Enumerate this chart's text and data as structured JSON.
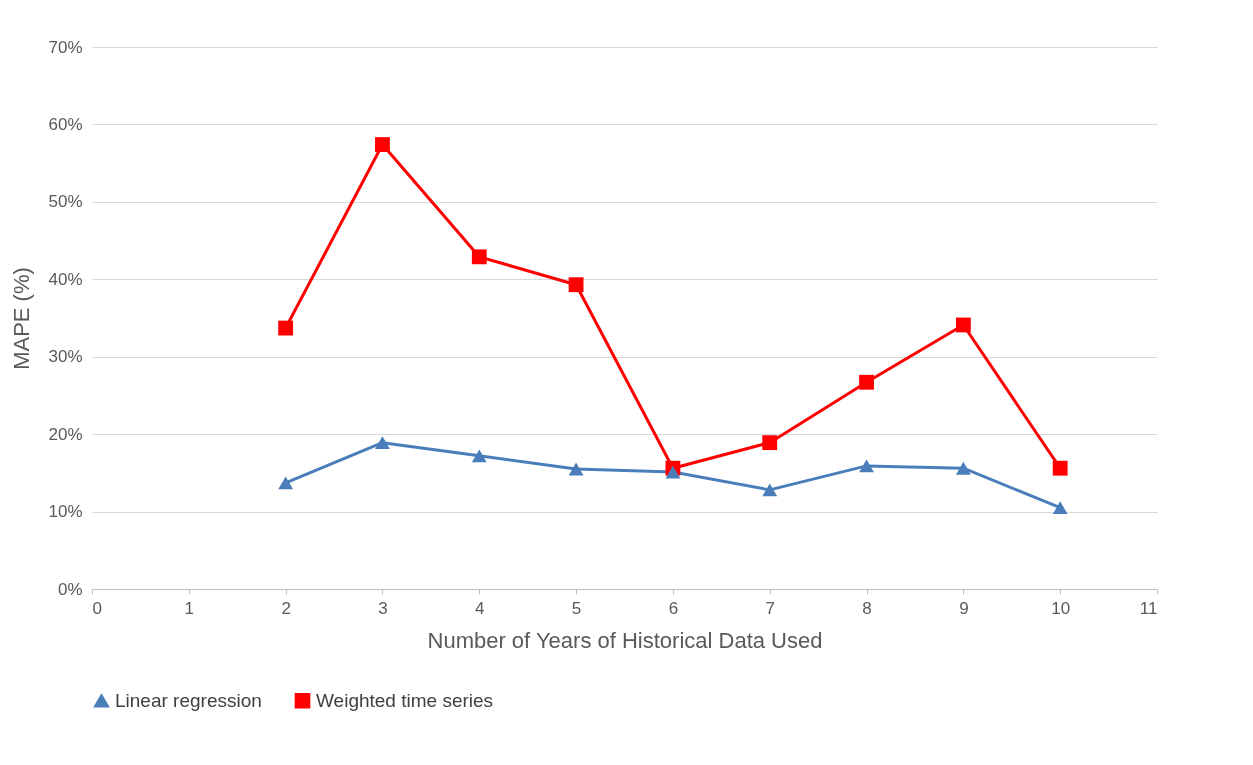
{
  "chart_data": {
    "type": "line",
    "xlabel": "Number of Years of Historical Data Used",
    "ylabel": "MAPE (%)",
    "x": [
      2,
      3,
      4,
      5,
      6,
      7,
      8,
      9,
      10
    ],
    "series": [
      {
        "name": "Linear regression",
        "color": "#4a7ebb",
        "marker": "triangle",
        "values": [
          13.7,
          18.9,
          17.2,
          15.5,
          15.1,
          12.8,
          15.9,
          15.6,
          10.5
        ]
      },
      {
        "name": "Weighted time series",
        "color": "#ff0000",
        "marker": "square",
        "values": [
          33.7,
          57.4,
          42.9,
          39.3,
          15.6,
          18.9,
          26.7,
          34.1,
          15.6
        ]
      }
    ],
    "xlim": [
      0,
      11
    ],
    "xticks": [
      0,
      1,
      2,
      3,
      4,
      5,
      6,
      7,
      8,
      9,
      10,
      11
    ],
    "ylim": [
      0,
      70
    ],
    "yticks": [
      {
        "value": 0,
        "label": "0%"
      },
      {
        "value": 10,
        "label": "10%"
      },
      {
        "value": 20,
        "label": "20%"
      },
      {
        "value": 30,
        "label": "30%"
      },
      {
        "value": 40,
        "label": "40%"
      },
      {
        "value": 50,
        "label": "50%"
      },
      {
        "value": 60,
        "label": "60%"
      },
      {
        "value": 70,
        "label": "70%"
      }
    ],
    "grid": "y",
    "legend": "bottom"
  }
}
